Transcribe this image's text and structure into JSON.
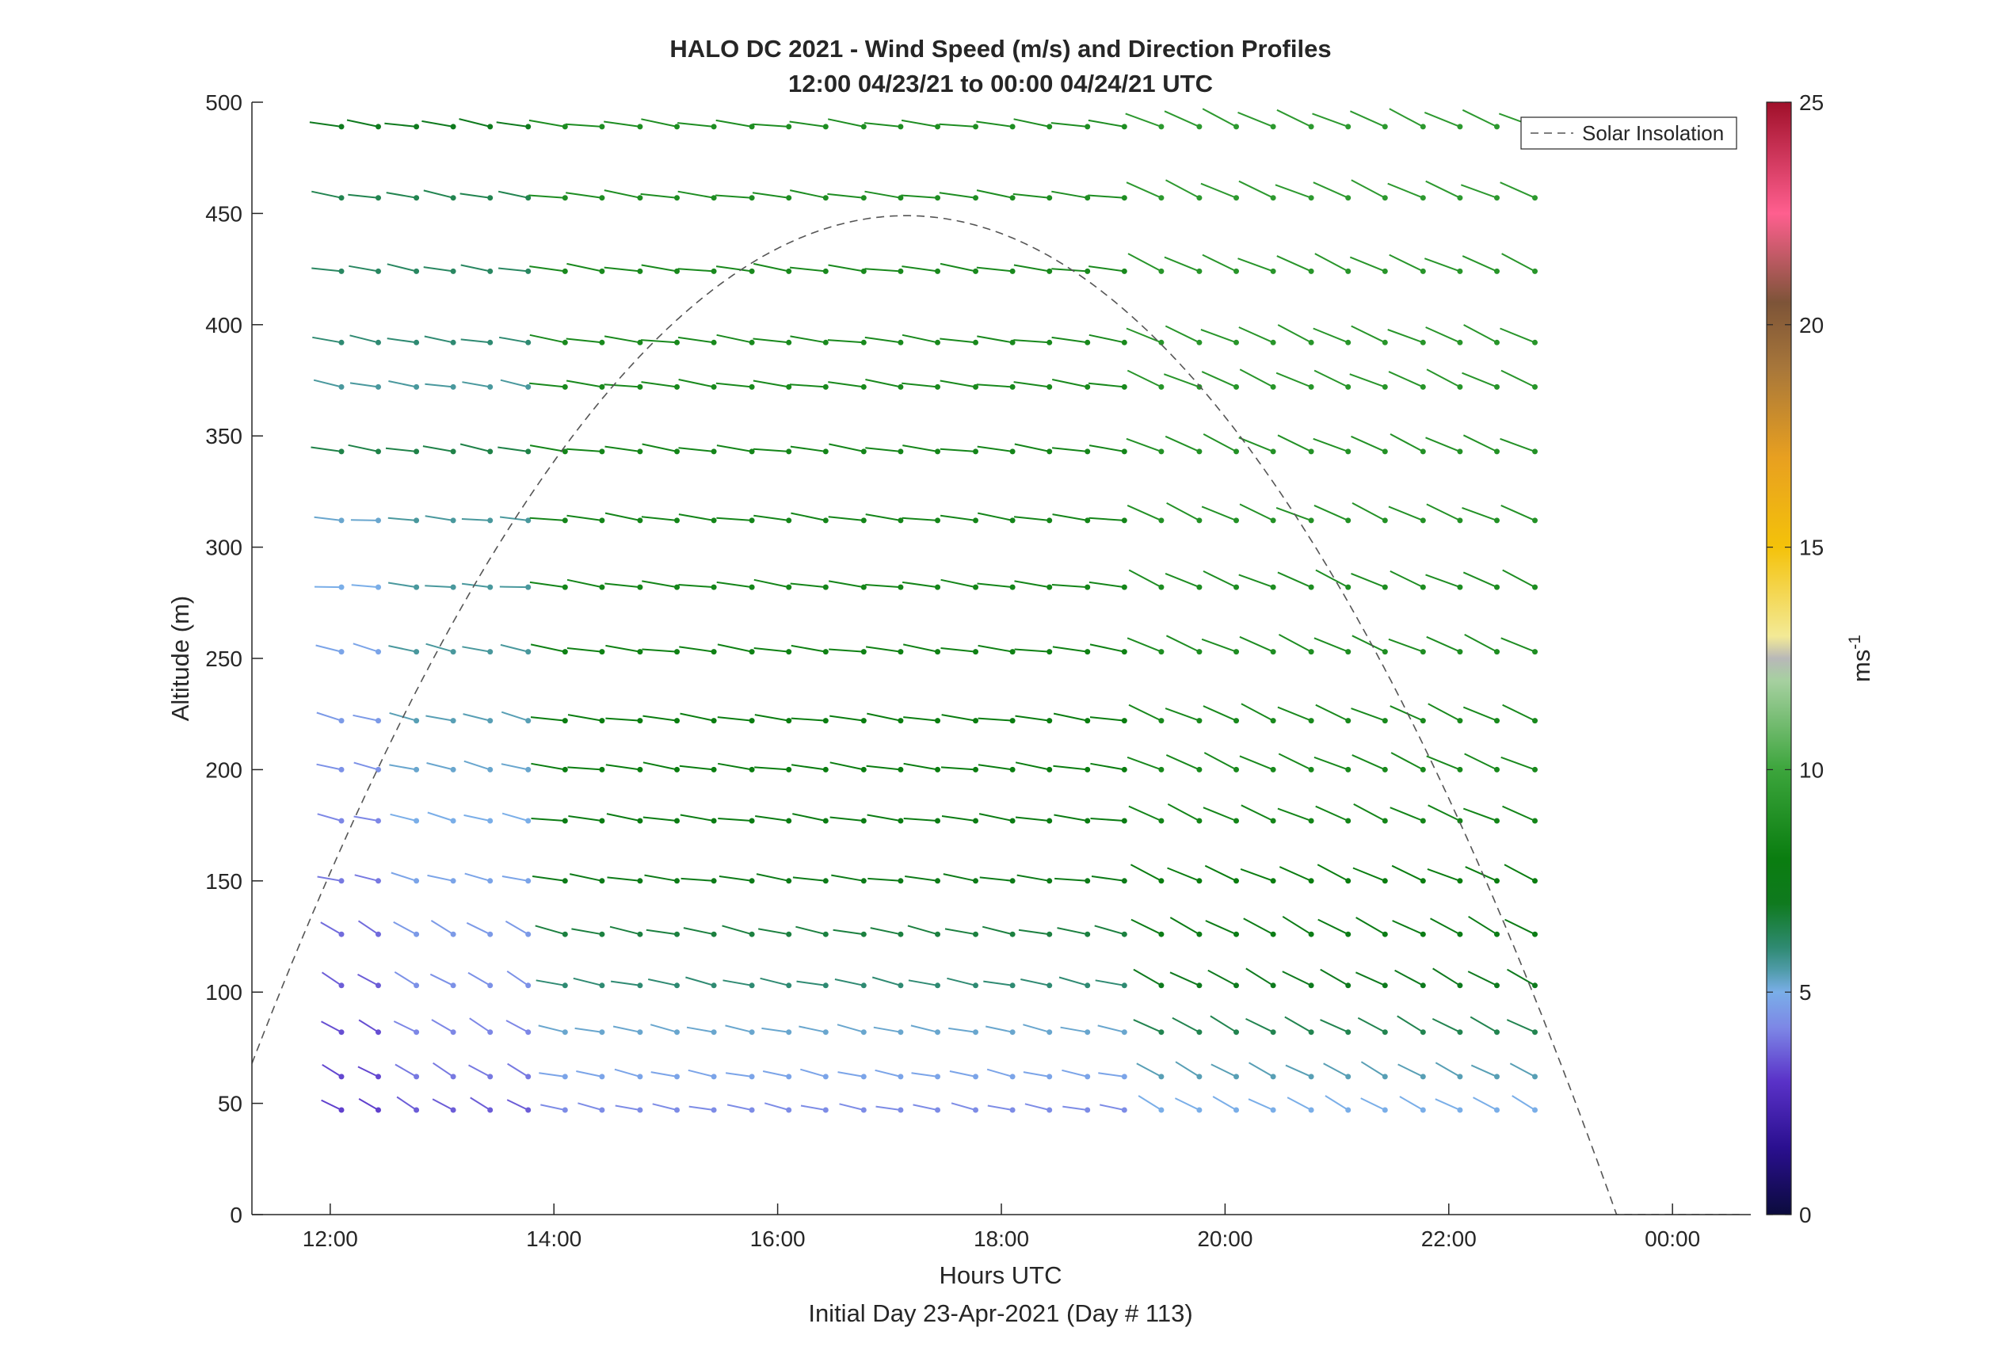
{
  "chart_data": {
    "type": "wind-barb-profile",
    "title": [
      "HALO DC 2021 - Wind Speed (m/s) and Direction Profiles",
      "12:00 04/23/21 to 00:00 04/24/21  UTC"
    ],
    "xlabel": "Hours UTC",
    "sublabel": "Initial Day 23-Apr-2021 (Day # 113)",
    "ylabel": "Altitude (m)",
    "xlim": [
      11.3,
      24.7
    ],
    "ylim": [
      0,
      500
    ],
    "x_ticks": [
      12,
      14,
      16,
      18,
      20,
      22,
      24
    ],
    "x_tick_labels": [
      "12:00",
      "14:00",
      "16:00",
      "18:00",
      "20:00",
      "22:00",
      "00:00"
    ],
    "y_ticks": [
      0,
      50,
      100,
      150,
      200,
      250,
      300,
      350,
      400,
      450,
      500
    ],
    "y_tick_labels": [
      "0",
      "50",
      "100",
      "150",
      "200",
      "250",
      "300",
      "350",
      "400",
      "450",
      "500"
    ],
    "colorbar": {
      "label": "ms",
      "label_exponent": "-1",
      "range": [
        0,
        25
      ],
      "ticks": [
        0,
        5,
        10,
        15,
        20,
        25
      ],
      "tick_labels": [
        "0",
        "5",
        "10",
        "15",
        "20",
        "25"
      ]
    },
    "legend": {
      "placement": "top-right",
      "entries": [
        "Solar Insolation"
      ]
    },
    "profile_times": [
      12.1,
      12.43,
      12.77,
      13.1,
      13.43,
      13.77,
      14.1,
      14.43,
      14.77,
      15.1,
      15.43,
      15.77,
      16.1,
      16.43,
      16.77,
      17.1,
      17.43,
      17.77,
      18.1,
      18.43,
      18.77,
      19.1,
      19.43,
      19.77,
      20.1,
      20.43,
      20.77,
      21.1,
      21.43,
      21.77,
      22.1,
      22.43,
      22.77
    ],
    "altitudes": [
      47,
      62,
      82,
      103,
      126,
      150,
      177,
      200,
      222,
      253,
      282,
      312,
      343,
      372,
      392,
      424,
      457,
      489
    ],
    "speed_groups": [
      {
        "altitudes": [
          47,
          62,
          82,
          103,
          126,
          150,
          177,
          200,
          222,
          253,
          282,
          312
        ],
        "time_range": [
          12.1,
          12.43
        ],
        "speeds": [
          3.2,
          3.3,
          3.4,
          3.6,
          3.8,
          4.0,
          4.2,
          4.4,
          4.6,
          4.8,
          5.0,
          5.2
        ]
      },
      {
        "altitudes": [
          47,
          62,
          82,
          103,
          126,
          150,
          177,
          200,
          222,
          253,
          282,
          312
        ],
        "time_range": [
          12.77,
          13.77
        ],
        "speeds": [
          3.6,
          4.0,
          4.2,
          4.4,
          4.6,
          4.8,
          5.0,
          5.2,
          5.4,
          5.6,
          5.6,
          5.6
        ]
      },
      {
        "altitudes": [
          343,
          372,
          392,
          424,
          457,
          489
        ],
        "time_range": [
          12.1,
          13.77
        ],
        "speeds": [
          6.5,
          5.6,
          6.0,
          6.2,
          6.4,
          7.0
        ]
      },
      {
        "altitudes": [
          47,
          62,
          82,
          103,
          126,
          150,
          177,
          200,
          222,
          253,
          282,
          312,
          343,
          372,
          392,
          424,
          457,
          489
        ],
        "time_range": [
          14.1,
          19.1
        ],
        "speeds": [
          4.3,
          4.8,
          5.2,
          6.0,
          6.6,
          7.4,
          7.8,
          8.0,
          8.0,
          8.2,
          8.4,
          8.4,
          8.4,
          8.6,
          8.6,
          8.6,
          8.8,
          8.8
        ]
      },
      {
        "altitudes": [
          47,
          62,
          82,
          103,
          126,
          150,
          177,
          200,
          222,
          253,
          282,
          312,
          343,
          372,
          392,
          424,
          457,
          489
        ],
        "time_range": [
          19.43,
          22.77
        ],
        "speeds": [
          5.0,
          5.4,
          6.4,
          7.0,
          7.6,
          8.0,
          8.4,
          8.6,
          8.6,
          8.8,
          8.8,
          9.0,
          9.0,
          9.2,
          9.2,
          9.2,
          9.4,
          9.4
        ]
      }
    ],
    "direction_trend": "winds from the west-northwest; lines tilt more steeply after 19:00",
    "solar_insolation": {
      "style": "dashed",
      "color": "#555555",
      "sunrise_hour": 10.8,
      "peak_hour": 17.15,
      "peak_value": 449,
      "sunset_hour": 23.5,
      "after_sunset_value": 0
    }
  }
}
